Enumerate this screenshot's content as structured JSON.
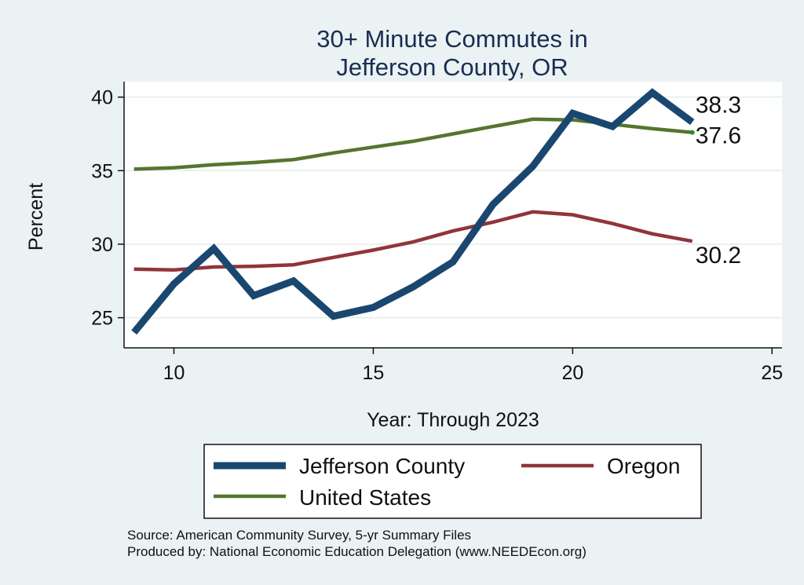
{
  "chart_data": {
    "type": "line",
    "title": [
      "30+ Minute Commutes in",
      "Jefferson County, OR"
    ],
    "xlabel": "Year: Through 2023",
    "ylabel": "Percent",
    "xlim": [
      8.75,
      25.25
    ],
    "ylim": [
      22.95,
      41.05
    ],
    "xticks": [
      10,
      15,
      20,
      25
    ],
    "yticks": [
      25,
      30,
      35,
      40
    ],
    "grid": true,
    "x": [
      9,
      10,
      11,
      12,
      13,
      14,
      15,
      16,
      17,
      18,
      19,
      20,
      21,
      22,
      23
    ],
    "series": [
      {
        "name": "Jefferson County",
        "color": "#1a476f",
        "values": [
          24.0,
          27.3,
          29.7,
          26.5,
          27.5,
          25.1,
          25.7,
          27.1,
          28.8,
          32.7,
          35.3,
          38.9,
          38.0,
          40.3,
          38.3
        ],
        "end_label": "38.3"
      },
      {
        "name": "Oregon",
        "color": "#90353b",
        "values": [
          28.3,
          28.25,
          28.45,
          28.5,
          28.6,
          29.1,
          29.6,
          30.15,
          30.9,
          31.5,
          32.2,
          32.0,
          31.4,
          30.7,
          30.2
        ],
        "end_label": "30.2"
      },
      {
        "name": "United States",
        "color": "#55752f",
        "values": [
          35.1,
          35.2,
          35.4,
          35.55,
          35.75,
          36.2,
          36.6,
          37.0,
          37.5,
          38.0,
          38.5,
          38.45,
          38.15,
          37.85,
          37.6
        ],
        "end_label": "37.6"
      }
    ],
    "legend": {
      "placement": "bottom",
      "items": [
        "Jefferson County",
        "Oregon",
        "United States"
      ]
    }
  },
  "notes": {
    "source": "Source: American Community Survey, 5-yr Summary Files",
    "produced_by": "Produced by: National Economic Education Delegation (www.NEEDEcon.org)"
  }
}
